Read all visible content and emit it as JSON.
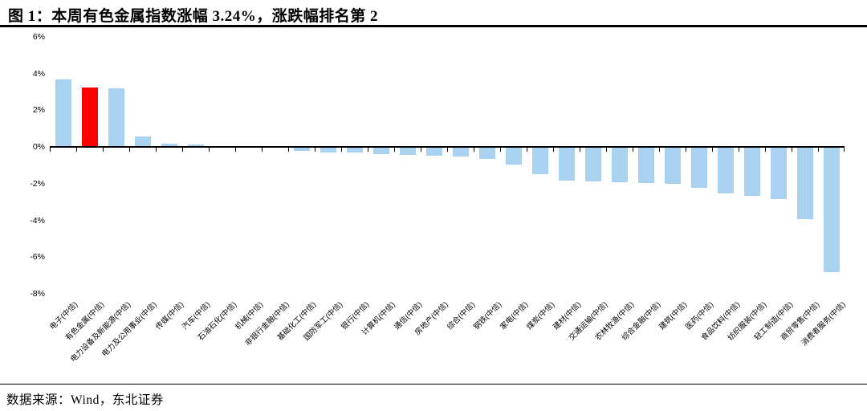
{
  "header": {
    "title": "图 1：本周有色金属指数涨幅 3.24%，涨跌幅排名第 2"
  },
  "footer": {
    "source_note": "数据来源：Wind，东北证券"
  },
  "colors": {
    "bar": "#a9d2f0",
    "highlight": "#ff0000",
    "axis": "#000000"
  },
  "chart_data": {
    "type": "bar",
    "title": "本周有色金属指数涨幅3.24%，涨跌幅排名第2",
    "xlabel": "",
    "ylabel": "",
    "ylim": [
      -8,
      6
    ],
    "ytick_step": 2,
    "ytick_labels": [
      "6%",
      "4%",
      "2%",
      "0%",
      "-2%",
      "-4%",
      "-6%",
      "-8%"
    ],
    "grid": false,
    "legend": "none",
    "highlight_index": 1,
    "highlight_reason": "有色金属(中信) 本周涨幅3.24%，排名第2",
    "categories": [
      "电子(中信)",
      "有色金属(中信)",
      "电力设备及新能源(中信)",
      "电力及公用事业(中信)",
      "传媒(中信)",
      "汽车(中信)",
      "石油石化(中信)",
      "机械(中信)",
      "非银行金融(中信)",
      "基础化工(中信)",
      "国防军工(中信)",
      "银行(中信)",
      "计算机(中信)",
      "通信(中信)",
      "房地产(中信)",
      "综合(中信)",
      "钢铁(中信)",
      "家电(中信)",
      "煤炭(中信)",
      "建材(中信)",
      "交通运输(中信)",
      "农林牧渔(中信)",
      "综合金融(中信)",
      "建筑(中信)",
      "医药(中信)",
      "食品饮料(中信)",
      "纺织服装(中信)",
      "轻工制造(中信)",
      "商贸零售(中信)",
      "消费者服务(中信)"
    ],
    "values": [
      3.68,
      3.24,
      3.18,
      0.58,
      0.19,
      0.12,
      0.04,
      0.01,
      -0.05,
      -0.2,
      -0.28,
      -0.3,
      -0.39,
      -0.44,
      -0.47,
      -0.51,
      -0.67,
      -0.95,
      -1.46,
      -1.85,
      -1.89,
      -1.92,
      -1.96,
      -2.0,
      -2.21,
      -2.54,
      -2.65,
      -2.84,
      -3.94,
      -6.81
    ]
  }
}
